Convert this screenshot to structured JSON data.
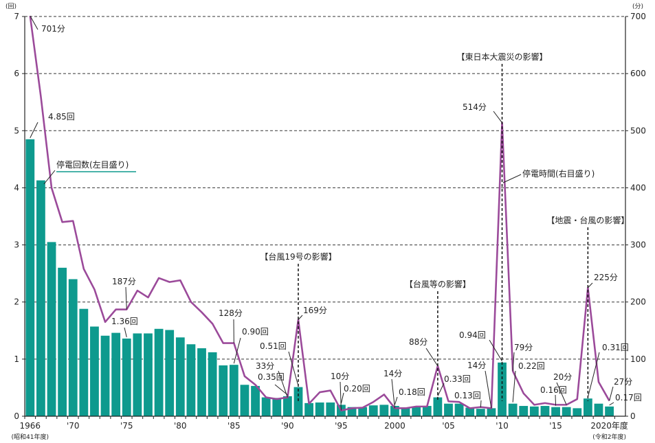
{
  "chart_data": {
    "type": "bar+line",
    "colors": {
      "bar": "#0e9a8e",
      "line": "#9b4a9a",
      "grid": "#333333"
    },
    "left_axis": {
      "unit": "(回)",
      "range": [
        0,
        7
      ],
      "ticks": [
        "0",
        "1",
        "2",
        "3",
        "4",
        "5",
        "6",
        "7"
      ]
    },
    "right_axis": {
      "unit": "(分)",
      "range": [
        0,
        700
      ],
      "ticks": [
        "0",
        "100",
        "200",
        "300",
        "400",
        "500",
        "600",
        "700"
      ]
    },
    "x_tick_labels": [
      {
        "year": 1966,
        "label": "1966"
      },
      {
        "year": 1970,
        "label": "'70"
      },
      {
        "year": 1975,
        "label": "'75"
      },
      {
        "year": 1980,
        "label": "'80"
      },
      {
        "year": 1985,
        "label": "'85"
      },
      {
        "year": 1990,
        "label": "'90"
      },
      {
        "year": 1995,
        "label": "'95"
      },
      {
        "year": 2000,
        "label": "2000"
      },
      {
        "year": 2005,
        "label": "'05"
      },
      {
        "year": 2010,
        "label": "'10"
      },
      {
        "year": 2015,
        "label": "'15"
      },
      {
        "year": 2020,
        "label": "2020年度"
      }
    ],
    "x_sub_labels": [
      {
        "year": 1966,
        "label": "(昭和41年度)"
      },
      {
        "year": 2020,
        "label": "(令和2年度)"
      }
    ],
    "years": [
      1966,
      1967,
      1968,
      1969,
      1970,
      1971,
      1972,
      1973,
      1974,
      1975,
      1976,
      1977,
      1978,
      1979,
      1980,
      1981,
      1982,
      1983,
      1984,
      1985,
      1986,
      1987,
      1988,
      1989,
      1990,
      1991,
      1992,
      1993,
      1994,
      1995,
      1996,
      1997,
      1998,
      1999,
      2000,
      2001,
      2002,
      2003,
      2004,
      2005,
      2006,
      2007,
      2008,
      2009,
      2010,
      2011,
      2012,
      2013,
      2014,
      2015,
      2016,
      2017,
      2018,
      2019,
      2020
    ],
    "series": [
      {
        "name": "停電回数(左目盛り)",
        "kind": "bar",
        "axis": "left",
        "values": [
          4.85,
          4.13,
          3.05,
          2.6,
          2.4,
          1.88,
          1.57,
          1.41,
          1.46,
          1.36,
          1.45,
          1.45,
          1.53,
          1.51,
          1.38,
          1.26,
          1.19,
          1.12,
          0.89,
          0.9,
          0.55,
          0.53,
          0.33,
          0.32,
          0.35,
          0.51,
          0.23,
          0.24,
          0.24,
          0.2,
          0.16,
          0.16,
          0.19,
          0.2,
          0.18,
          0.15,
          0.17,
          0.18,
          0.33,
          0.22,
          0.22,
          0.15,
          0.13,
          0.14,
          0.94,
          0.22,
          0.18,
          0.17,
          0.18,
          0.16,
          0.16,
          0.14,
          0.31,
          0.22,
          0.17
        ]
      },
      {
        "name": "停電時間(右目盛り)",
        "kind": "line",
        "axis": "right",
        "values": [
          701,
          560,
          400,
          340,
          342,
          258,
          222,
          165,
          187,
          187,
          220,
          208,
          242,
          235,
          238,
          200,
          182,
          162,
          128,
          128,
          70,
          55,
          33,
          30,
          33,
          169,
          22,
          42,
          45,
          10,
          14,
          15,
          25,
          38,
          14,
          14,
          17,
          17,
          88,
          26,
          25,
          14,
          16,
          14,
          514,
          79,
          40,
          20,
          23,
          20,
          20,
          30,
          225,
          60,
          27
        ]
      }
    ],
    "annotations": {
      "bar_labels": [
        {
          "year": 1966,
          "text": "4.85回"
        },
        {
          "year": 1975,
          "text": "1.36回"
        },
        {
          "year": 1985,
          "text": "0.90回"
        },
        {
          "year": 1990,
          "text": "0.35回"
        },
        {
          "year": 1991,
          "text": "0.51回"
        },
        {
          "year": 1995,
          "text": "0.20回"
        },
        {
          "year": 2000,
          "text": "0.18回"
        },
        {
          "year": 2004,
          "text": "0.33回"
        },
        {
          "year": 2008,
          "text": "0.13回"
        },
        {
          "year": 2010,
          "text": "0.94回"
        },
        {
          "year": 2011,
          "text": "0.22回"
        },
        {
          "year": 2015,
          "text": "0.16回"
        },
        {
          "year": 2018,
          "text": "0.31回"
        },
        {
          "year": 2020,
          "text": "0.17回"
        }
      ],
      "line_labels": [
        {
          "year": 1966,
          "text": "701分"
        },
        {
          "year": 1975,
          "text": "187分"
        },
        {
          "year": 1985,
          "text": "128分"
        },
        {
          "year": 1990,
          "text": "33分"
        },
        {
          "year": 1991,
          "text": "169分"
        },
        {
          "year": 1995,
          "text": "10分"
        },
        {
          "year": 2000,
          "text": "14分"
        },
        {
          "year": 2004,
          "text": "88分"
        },
        {
          "year": 2009,
          "text": "14分"
        },
        {
          "year": 2010,
          "text": "514分"
        },
        {
          "year": 2011,
          "text": "79分"
        },
        {
          "year": 2016,
          "text": "20分"
        },
        {
          "year": 2018,
          "text": "225分"
        },
        {
          "year": 2020,
          "text": "27分"
        }
      ],
      "series_labels": [
        {
          "series": 0,
          "text": "停電回数(左目盛り)"
        },
        {
          "series": 1,
          "text": "停電時間(右目盛り)"
        }
      ],
      "events": [
        {
          "year": 1991,
          "text": "【台風19号の影響】"
        },
        {
          "year": 2004,
          "text": "【台風等の影響】"
        },
        {
          "year": 2010,
          "text": "【東日本大震災の影響】"
        },
        {
          "year": 2018,
          "text": "【地震・台風の影響】"
        }
      ]
    },
    "grid": true,
    "legend": "inline"
  }
}
